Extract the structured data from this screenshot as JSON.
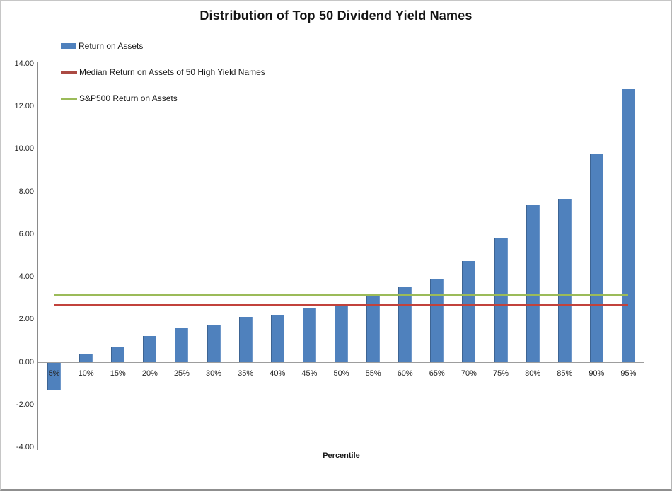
{
  "page": {
    "title": "Distribution of Top 50 Dividend Yield Names"
  },
  "legend": {
    "items": [
      {
        "id": "return-on-assets",
        "label": "Return on Assets",
        "type": "bar",
        "color": "#4f81bd"
      },
      {
        "id": "median-return",
        "label": "Median Return on Assets of 50 High Yield Names",
        "type": "line",
        "color": "#ab4a43"
      },
      {
        "id": "sp500-return",
        "label": "S&P500 Return on Assets",
        "type": "line",
        "color": "#9bbb59"
      }
    ]
  },
  "chart_data": {
    "type": "bar",
    "title": "Distribution of Top 50 Dividend Yield Names",
    "xlabel": "Percentile",
    "ylabel": "",
    "categories": [
      "5%",
      "10%",
      "15%",
      "20%",
      "25%",
      "30%",
      "35%",
      "40%",
      "45%",
      "50%",
      "55%",
      "60%",
      "65%",
      "70%",
      "75%",
      "80%",
      "85%",
      "90%",
      "95%"
    ],
    "series": [
      {
        "id": "roa-bars",
        "name": "Return on Assets",
        "type": "bar",
        "color": "#4f81bd",
        "values": [
          -1.3,
          0.4,
          0.7,
          1.2,
          1.6,
          1.7,
          2.1,
          2.2,
          2.55,
          2.7,
          3.2,
          3.5,
          3.9,
          4.75,
          5.8,
          7.35,
          7.65,
          9.75,
          12.8
        ]
      },
      {
        "id": "median-line",
        "name": "Median Return on Assets of 50 High Yield Names",
        "type": "hline",
        "color": "#c2423c",
        "value": 2.7
      },
      {
        "id": "sp500-line",
        "name": "S&P500 Return on Assets",
        "type": "hline",
        "color": "#9bbb59",
        "value": 3.15
      }
    ],
    "ylim": [
      -4,
      14
    ],
    "ytick_labels": [
      "14.00",
      "12.00",
      "10.00",
      "8.00",
      "6.00",
      "4.00",
      "2.00",
      "0.00",
      "-2.00",
      "-4.00"
    ],
    "grid": false,
    "legend_position": "top-left"
  }
}
